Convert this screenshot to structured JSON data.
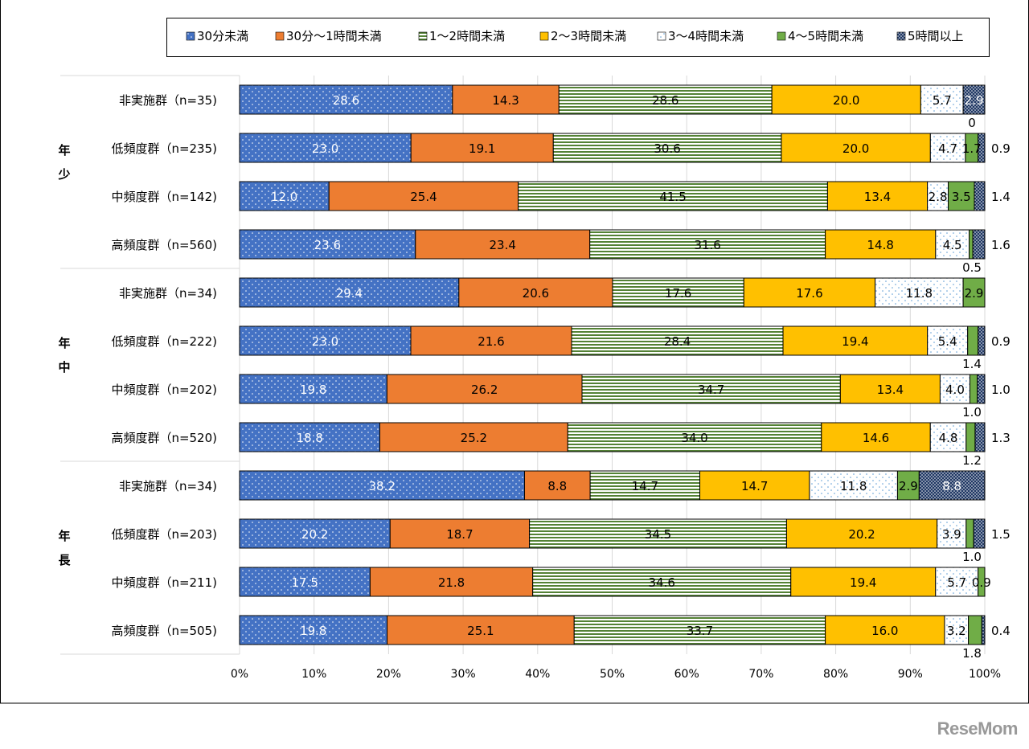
{
  "chart_data": {
    "type": "bar",
    "orientation": "horizontal-stacked-100",
    "legend_position": "top",
    "grid": true,
    "xlim": [
      0,
      100
    ],
    "x_ticks": [
      "0%",
      "10%",
      "20%",
      "30%",
      "40%",
      "50%",
      "60%",
      "70%",
      "80%",
      "90%",
      "100%"
    ],
    "series": [
      {
        "name": "30分未満",
        "color": "#4472C4",
        "pattern": "dots-white"
      },
      {
        "name": "30分〜1時間未満",
        "color": "#ED7D31",
        "pattern": "solid"
      },
      {
        "name": "1〜2時間未満",
        "color": "#548235",
        "pattern": "horizontal-stripes"
      },
      {
        "name": "2〜3時間未満",
        "color": "#FFC000",
        "pattern": "solid"
      },
      {
        "name": "3〜4時間未満",
        "color": "#5B9BD5",
        "pattern": "dots-on-white"
      },
      {
        "name": "4〜5時間未満",
        "color": "#70AD47",
        "pattern": "solid"
      },
      {
        "name": "5時間以上",
        "color": "#203864",
        "pattern": "dots-white"
      }
    ],
    "groups": [
      {
        "label": "年少",
        "rows": [
          {
            "label": "非実施群（n=35)",
            "values": [
              28.6,
              14.3,
              28.6,
              20.0,
              5.7,
              0,
              2.9
            ],
            "labels": [
              "28.6",
              "14.3",
              "28.6",
              "20.0",
              "5.7",
              "0",
              "2.9"
            ]
          },
          {
            "label": "低頻度群（n=235)",
            "values": [
              23.0,
              19.1,
              30.6,
              20.0,
              4.7,
              1.7,
              0.9
            ],
            "labels": [
              "23.0",
              "19.1",
              "30.6",
              "20.0",
              "4.7",
              "1.7",
              "0.9"
            ]
          },
          {
            "label": "中頻度群（n=142)",
            "values": [
              12.0,
              25.4,
              41.5,
              13.4,
              2.8,
              3.5,
              1.4
            ],
            "labels": [
              "12.0",
              "25.4",
              "41.5",
              "13.4",
              "2.8",
              "3.5",
              "1.4"
            ]
          },
          {
            "label": "高頻度群（n=560)",
            "values": [
              23.6,
              23.4,
              31.6,
              14.8,
              4.5,
              0.5,
              1.6
            ],
            "labels": [
              "23.6",
              "23.4",
              "31.6",
              "14.8",
              "4.5",
              "0.5",
              "1.6"
            ]
          }
        ]
      },
      {
        "label": "年中",
        "rows": [
          {
            "label": "非実施群（n=34)",
            "values": [
              29.4,
              20.6,
              17.6,
              17.6,
              11.8,
              2.9,
              0
            ],
            "labels": [
              "29.4",
              "20.6",
              "17.6",
              "17.6",
              "11.8",
              "2.9",
              ""
            ]
          },
          {
            "label": "低頻度群（n=222)",
            "values": [
              23.0,
              21.6,
              28.4,
              19.4,
              5.4,
              1.4,
              0.9
            ],
            "labels": [
              "23.0",
              "21.6",
              "28.4",
              "19.4",
              "5.4",
              "1.4",
              "0.9"
            ]
          },
          {
            "label": "中頻度群（n=202)",
            "values": [
              19.8,
              26.2,
              34.7,
              13.4,
              4.0,
              1.0,
              1.0
            ],
            "labels": [
              "19.8",
              "26.2",
              "34.7",
              "13.4",
              "4.0",
              "1.0",
              "1.0"
            ]
          },
          {
            "label": "高頻度群（n=520)",
            "values": [
              18.8,
              25.2,
              34.0,
              14.6,
              4.8,
              1.2,
              1.3
            ],
            "labels": [
              "18.8",
              "25.2",
              "34.0",
              "14.6",
              "4.8",
              "1.2",
              "1.3"
            ]
          }
        ]
      },
      {
        "label": "年長",
        "rows": [
          {
            "label": "非実施群（n=34)",
            "values": [
              38.2,
              8.8,
              14.7,
              14.7,
              11.8,
              2.9,
              8.8
            ],
            "labels": [
              "38.2",
              "8.8",
              "14.7",
              "14.7",
              "11.8",
              "2.9",
              "8.8"
            ]
          },
          {
            "label": "低頻度群（n=203)",
            "values": [
              20.2,
              18.7,
              34.5,
              20.2,
              3.9,
              1.0,
              1.5
            ],
            "labels": [
              "20.2",
              "18.7",
              "34.5",
              "20.2",
              "3.9",
              "1.0",
              "1.5"
            ]
          },
          {
            "label": "中頻度群（n=211)",
            "values": [
              17.5,
              21.8,
              34.6,
              19.4,
              5.7,
              0.9,
              0
            ],
            "labels": [
              "17.5",
              "21.8",
              "34.6",
              "19.4",
              "5.7",
              "0.9",
              ""
            ]
          },
          {
            "label": "高頻度群（n=505)",
            "values": [
              19.8,
              25.1,
              33.7,
              16.0,
              3.2,
              1.8,
              0.4
            ],
            "labels": [
              "19.8",
              "25.1",
              "33.7",
              "16.0",
              "3.2",
              "1.8",
              "0.4"
            ]
          }
        ]
      }
    ]
  },
  "watermark": "ReseMom"
}
